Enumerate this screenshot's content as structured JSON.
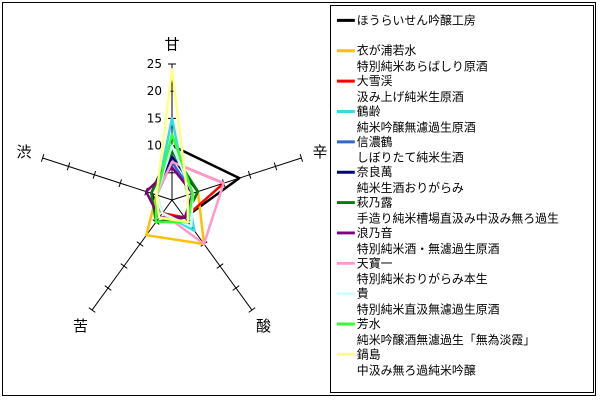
{
  "chart_data": {
    "type": "radar",
    "axes": [
      "甘",
      "辛",
      "酸",
      "苦",
      "渋"
    ],
    "rmax": 25,
    "ticks": [
      10,
      15,
      20,
      25
    ],
    "legend_position": "right",
    "series": [
      {
        "name": "ほうらいせん吟醸工房",
        "subtitle": "",
        "color": "#000000",
        "values": [
          10,
          13,
          4,
          3,
          4
        ]
      },
      {
        "name": "衣が浦若水",
        "subtitle": "特別純米あらばしり原酒",
        "color": "#FFC000",
        "values": [
          8,
          5,
          10,
          8,
          3
        ]
      },
      {
        "name": "大雪渓",
        "subtitle": "汲み上げ純米生原酒",
        "color": "#FF0000",
        "values": [
          7,
          10,
          4,
          3,
          3
        ]
      },
      {
        "name": "鶴齢",
        "subtitle": "純米吟醸無濾過生原酒",
        "color": "#33DDDD",
        "values": [
          15,
          3,
          7,
          3,
          3
        ]
      },
      {
        "name": "信濃鶴",
        "subtitle": "しぼりたて純米生酒",
        "color": "#3366CC",
        "values": [
          7,
          4,
          5,
          4,
          3
        ]
      },
      {
        "name": "奈良萬",
        "subtitle": "純米生酒おりがらみ",
        "color": "#000080",
        "values": [
          8,
          5,
          4,
          4,
          3
        ]
      },
      {
        "name": "萩乃露",
        "subtitle": "手造り純米槽場直汲み中汲み無ろ過生",
        "color": "#008000",
        "values": [
          9,
          5,
          4,
          5,
          4
        ]
      },
      {
        "name": "浪乃音",
        "subtitle": "特別純米酒・無濾過生原酒",
        "color": "#800080",
        "values": [
          6,
          4,
          4,
          4,
          5
        ]
      },
      {
        "name": "天寶一",
        "subtitle": "特別純米おりがらみ本生",
        "color": "#FF99CC",
        "values": [
          7,
          10,
          10,
          3,
          3
        ]
      },
      {
        "name": "貴",
        "subtitle": "特別純米直汲無濾過生原酒",
        "color": "#CCFFFF",
        "values": [
          10,
          4,
          6,
          3,
          3
        ]
      },
      {
        "name": "芳水",
        "subtitle": "純米吟醸酒無濾過生「無為淡霞」",
        "color": "#33FF33",
        "values": [
          12,
          4,
          5,
          5,
          3
        ]
      },
      {
        "name": "鍋島",
        "subtitle": "中汲み無ろ過純米吟醸",
        "color": "#FFFF80",
        "values": [
          24,
          3,
          5,
          4,
          3
        ]
      }
    ]
  }
}
